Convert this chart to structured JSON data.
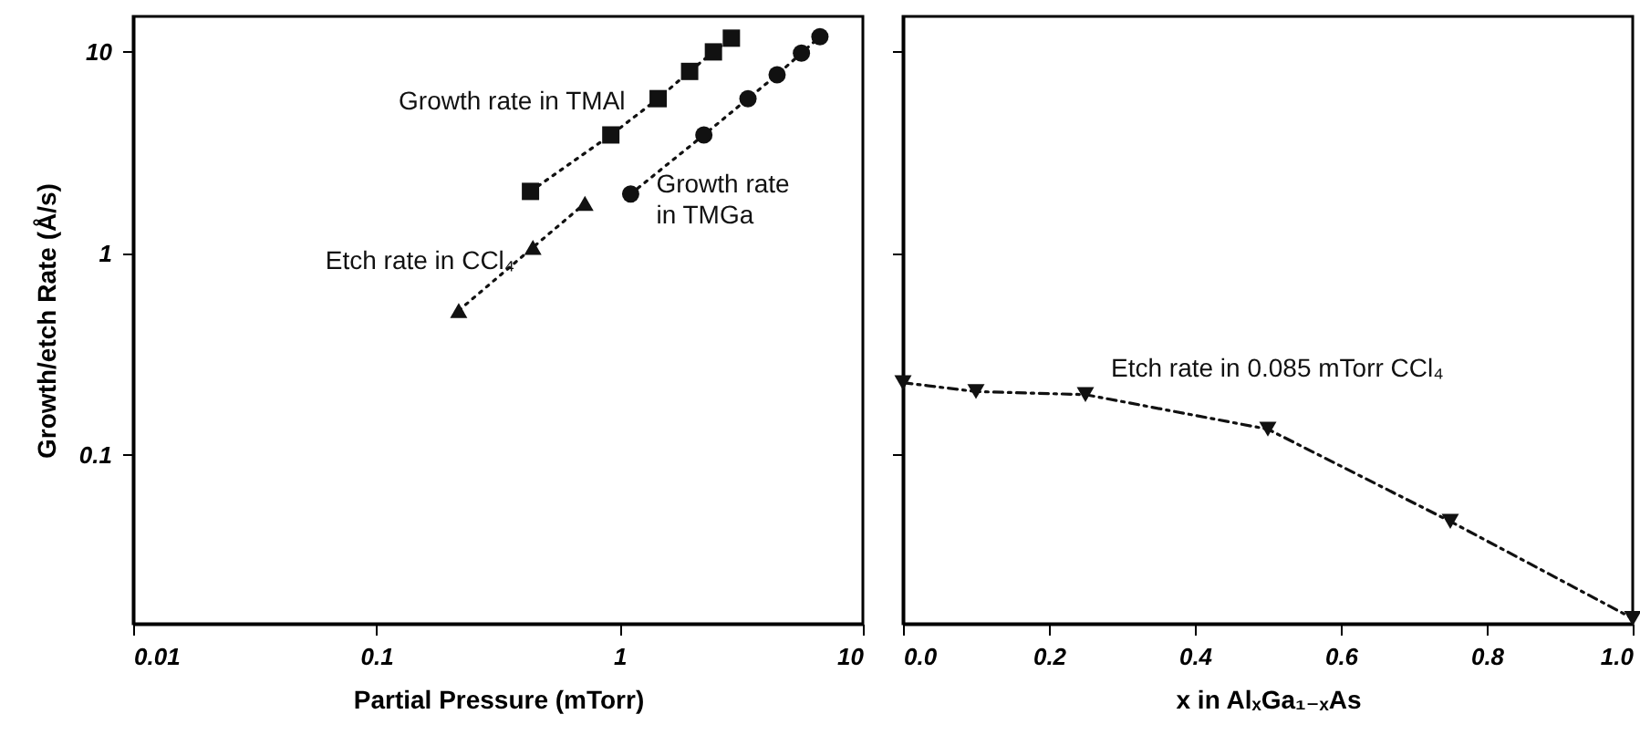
{
  "chart_data": [
    {
      "type": "line",
      "xlabel": "Partial Pressure  (mTorr)",
      "ylabel": "Growth/etch Rate  (Å/s)",
      "log": "xy",
      "grid": false,
      "xlim": [
        0.01,
        10
      ],
      "xticks": [
        0.01,
        0.1,
        1,
        10
      ],
      "ylim": [
        0.0145,
        15
      ],
      "yticks": [
        0.1,
        1,
        10
      ],
      "series": [
        {
          "name": "Growth rate in TMAl",
          "color": "#111111",
          "marker": "square",
          "line_style": "dotted",
          "x": [
            0.43,
            0.92,
            1.44,
            1.94,
            2.43,
            2.88
          ],
          "values": [
            2.03,
            3.87,
            5.86,
            8.0,
            10.0,
            11.7
          ]
        },
        {
          "name": "Growth rate\nin TMGa",
          "color": "#111111",
          "marker": "circle",
          "line_style": "dotted",
          "x": [
            1.11,
            2.22,
            3.37,
            4.44,
            5.59,
            6.66
          ],
          "values": [
            1.97,
            3.87,
            5.86,
            7.7,
            9.86,
            11.9
          ]
        },
        {
          "name": "Etch rate in CCl₄",
          "color": "#111111",
          "marker": "triangle",
          "line_style": "dotted",
          "x": [
            0.218,
            0.44,
            0.72
          ],
          "values": [
            0.52,
            1.07,
            1.77
          ]
        }
      ]
    },
    {
      "type": "line",
      "xlabel": "x in AlₓGa₁₋ₓAs",
      "log": "y",
      "grid": false,
      "tick_labels": "x",
      "xlim": [
        0,
        1
      ],
      "xticks": [
        {
          "value": 0,
          "label": "0.0"
        },
        0.2,
        0.4,
        0.6,
        0.8,
        {
          "value": 1,
          "label": "1.0"
        }
      ],
      "ylim": [
        0.0145,
        15
      ],
      "yticks": [
        {
          "value": 0.1,
          "label": null
        },
        {
          "value": 1,
          "label": null
        },
        {
          "value": 10,
          "label": null
        }
      ],
      "series": [
        {
          "name": "Etch rate in 0.085 mTorr CCl₄",
          "color": "#111111",
          "marker": "triangle-down",
          "line_style": "dashed",
          "x": [
            0,
            0.1,
            0.25,
            0.5,
            0.75,
            1.0
          ],
          "values": [
            0.228,
            0.206,
            0.199,
            0.134,
            0.0467,
            0.0154
          ]
        }
      ]
    }
  ]
}
